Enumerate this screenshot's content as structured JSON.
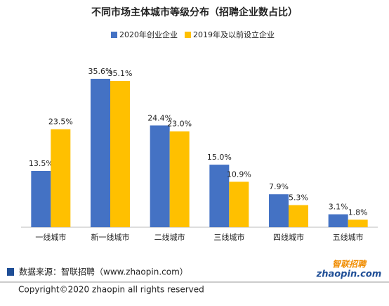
{
  "chart_data": {
    "type": "bar",
    "title": "不同市场主体城市等级分布（招聘企业数占比）",
    "categories": [
      "一线城市",
      "新一线城市",
      "二线城市",
      "三线城市",
      "四线城市",
      "五线城市"
    ],
    "series": [
      {
        "name": "2020年创业企业",
        "color": "#4472c4",
        "values": [
          13.5,
          35.6,
          24.4,
          15.0,
          7.9,
          3.1
        ],
        "value_labels": [
          "13.5%",
          "35.6%",
          "24.4%",
          "15.0%",
          "7.9%",
          "3.1%"
        ]
      },
      {
        "name": "2019年及以前设立企业",
        "color": "#ffc000",
        "values": [
          23.5,
          35.1,
          23.0,
          10.9,
          5.3,
          1.8
        ],
        "value_labels": [
          "23.5%",
          "35.1%",
          "23.0%",
          "10.9%",
          "5.3%",
          "1.8%"
        ]
      }
    ],
    "legend": "top"
  },
  "footer": {
    "source": "数据来源：智联招聘（www.zhaopin.com）",
    "copyright": "Copyright©2020 zhaopin all rights reserved",
    "logo_cn": "智联招聘",
    "logo_en": "zhaopin.com"
  }
}
